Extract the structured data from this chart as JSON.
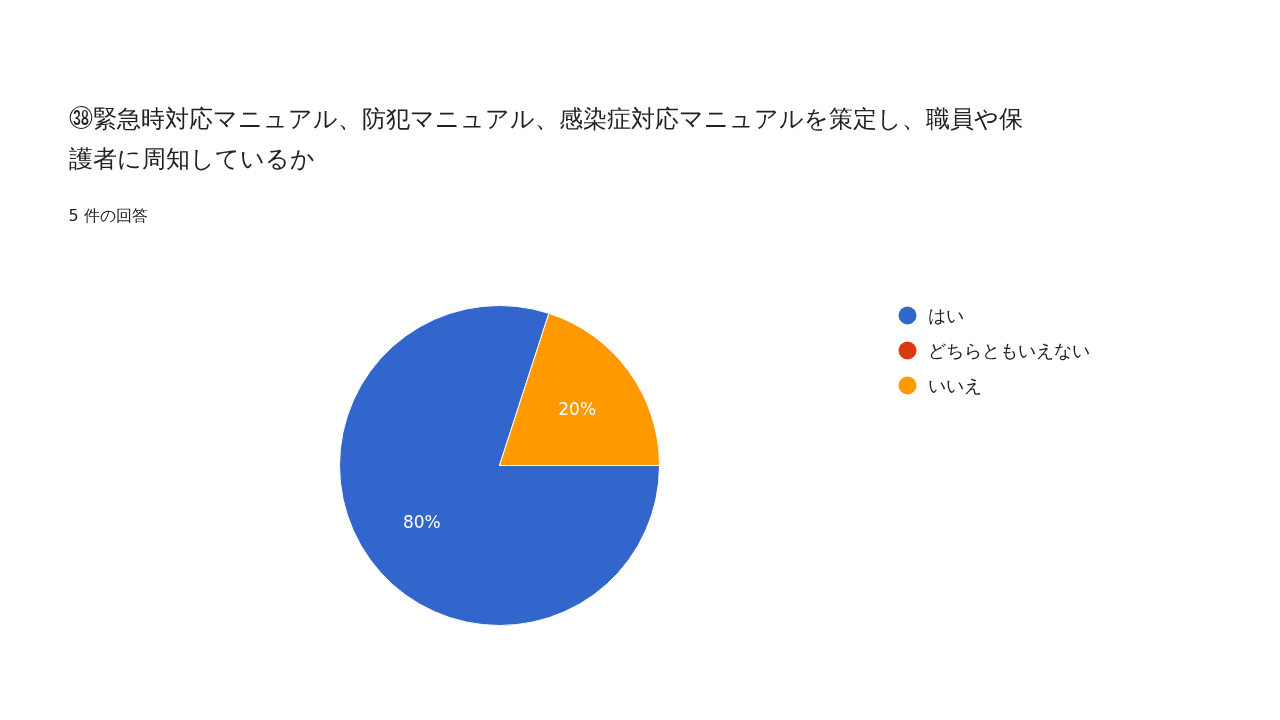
{
  "chart_data": {
    "type": "pie",
    "title": "㊳緊急時対応マニュアル、防犯マニュアル、感染症対応マニュアルを策定し、職員や保護者に周知しているか",
    "subtitle": "5 件の回答",
    "categories": [
      "はい",
      "どちらともいえない",
      "いいえ"
    ],
    "values": [
      80,
      0,
      20
    ],
    "colors": [
      "#3366cc",
      "#dc3912",
      "#ff9900"
    ],
    "value_labels": [
      "80%",
      null,
      "20%"
    ],
    "legend": "right"
  }
}
